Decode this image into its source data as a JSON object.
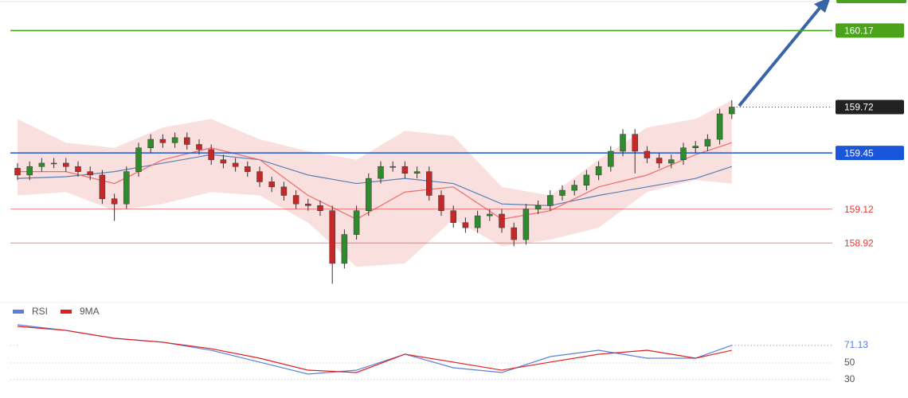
{
  "chart_data": [
    {
      "type": "candlestick",
      "ylim": [
        158.57,
        160.35
      ],
      "up_color": "#2e8b2e",
      "down_color": "#c62828",
      "open": [
        159.36,
        159.32,
        159.37,
        159.39,
        159.39,
        159.37,
        159.34,
        159.32,
        159.18,
        159.15,
        159.34,
        159.48,
        159.53,
        159.51,
        159.54,
        159.5,
        159.47,
        159.41,
        159.39,
        159.37,
        159.34,
        159.28,
        159.25,
        159.2,
        159.15,
        159.14,
        159.11,
        158.8,
        158.97,
        159.11,
        159.3,
        159.37,
        159.37,
        159.33,
        159.34,
        159.2,
        159.11,
        159.04,
        159.01,
        159.08,
        159.09,
        159.01,
        158.94,
        159.12,
        159.14,
        159.2,
        159.23,
        159.26,
        159.32,
        159.37,
        159.46,
        159.56,
        159.46,
        159.42,
        159.39,
        159.41,
        159.48,
        159.49,
        159.53,
        159.68
      ],
      "high": [
        159.39,
        159.4,
        159.42,
        159.42,
        159.42,
        159.4,
        159.37,
        159.35,
        159.21,
        159.37,
        159.51,
        159.56,
        159.56,
        159.57,
        159.57,
        159.53,
        159.5,
        159.44,
        159.42,
        159.4,
        159.37,
        159.31,
        159.28,
        159.23,
        159.18,
        159.17,
        159.14,
        159.0,
        159.14,
        159.33,
        159.4,
        159.4,
        159.4,
        159.37,
        159.37,
        159.23,
        159.14,
        159.07,
        159.11,
        159.12,
        159.12,
        159.04,
        159.15,
        159.17,
        159.23,
        159.26,
        159.29,
        159.35,
        159.4,
        159.49,
        159.59,
        159.59,
        159.49,
        159.45,
        159.44,
        159.51,
        159.52,
        159.56,
        159.71,
        159.76
      ],
      "low": [
        159.29,
        159.29,
        159.34,
        159.36,
        159.34,
        159.31,
        159.29,
        159.15,
        159.05,
        159.12,
        159.31,
        159.45,
        159.48,
        159.48,
        159.47,
        159.44,
        159.38,
        159.36,
        159.34,
        159.31,
        159.25,
        159.22,
        159.17,
        159.12,
        159.11,
        159.08,
        158.68,
        158.77,
        158.94,
        159.08,
        159.27,
        159.34,
        159.3,
        159.3,
        159.17,
        159.08,
        159.01,
        158.98,
        158.98,
        159.05,
        158.98,
        158.9,
        158.91,
        159.09,
        159.11,
        159.17,
        159.2,
        159.23,
        159.29,
        159.34,
        159.43,
        159.33,
        159.39,
        159.36,
        159.36,
        159.38,
        159.45,
        159.46,
        159.5,
        159.65
      ],
      "close": [
        159.32,
        159.37,
        159.39,
        159.39,
        159.37,
        159.34,
        159.32,
        159.18,
        159.15,
        159.34,
        159.48,
        159.53,
        159.51,
        159.54,
        159.5,
        159.47,
        159.41,
        159.39,
        159.37,
        159.34,
        159.28,
        159.25,
        159.2,
        159.15,
        159.14,
        159.11,
        158.8,
        158.97,
        159.11,
        159.3,
        159.37,
        159.37,
        159.33,
        159.34,
        159.2,
        159.11,
        159.04,
        159.01,
        159.08,
        159.09,
        159.01,
        158.94,
        159.12,
        159.14,
        159.2,
        159.23,
        159.26,
        159.32,
        159.37,
        159.46,
        159.56,
        159.46,
        159.42,
        159.39,
        159.41,
        159.48,
        159.49,
        159.53,
        159.68,
        159.72
      ],
      "band_x": [
        0,
        4,
        8,
        12,
        16,
        20,
        24,
        28,
        32,
        36,
        40,
        44,
        48,
        52,
        56,
        59
      ],
      "band_upper": [
        159.65,
        159.51,
        159.48,
        159.6,
        159.65,
        159.53,
        159.46,
        159.41,
        159.58,
        159.55,
        159.25,
        159.2,
        159.41,
        159.6,
        159.65,
        159.76
      ],
      "band_lower": [
        159.2,
        159.22,
        159.11,
        159.15,
        159.22,
        159.2,
        159.04,
        158.78,
        158.8,
        159.06,
        158.9,
        158.94,
        159.01,
        159.22,
        159.29,
        159.27
      ],
      "band_mid": [
        159.34,
        159.34,
        159.27,
        159.41,
        159.48,
        159.41,
        159.2,
        159.06,
        159.22,
        159.25,
        159.06,
        159.11,
        159.25,
        159.32,
        159.44,
        159.51
      ],
      "slow_ma": [
        159.3,
        159.31,
        159.34,
        159.39,
        159.44,
        159.41,
        159.32,
        159.27,
        159.3,
        159.27,
        159.15,
        159.14,
        159.2,
        159.25,
        159.3,
        159.37
      ],
      "band_color": "#f7c9c9",
      "mid_color": "#ef6b6b",
      "slow_color": "#5a7fb5",
      "levels": [
        {
          "value": 160.17,
          "color": "#4aa31a",
          "boxed": true
        },
        {
          "value": 159.45,
          "color": "#1a56db",
          "boxed": true
        },
        {
          "value": 159.12,
          "color": "#e53935",
          "boxed": false
        },
        {
          "value": 158.92,
          "color": "#e53935",
          "boxed": false
        }
      ],
      "current": {
        "value": 159.72,
        "color": "#222222"
      }
    },
    {
      "type": "line",
      "x": [
        0,
        4,
        8,
        12,
        16,
        20,
        24,
        28,
        32,
        36,
        40,
        44,
        48,
        52,
        56,
        59
      ],
      "ylim": [
        10,
        110
      ],
      "yticks": [
        50,
        30
      ],
      "series": [
        {
          "name": "RSI",
          "color": "#5b7fdb",
          "values": [
            95.7,
            89.0,
            79.5,
            74.8,
            65.2,
            51.0,
            36.7,
            41.4,
            60.5,
            44.3,
            38.6,
            57.6,
            65.2,
            55.7,
            55.7,
            71.13
          ]
        },
        {
          "name": "9MA",
          "color": "#e02020",
          "values": [
            93.8,
            89.0,
            79.5,
            74.8,
            67.1,
            55.7,
            41.4,
            38.6,
            60.5,
            51.0,
            41.4,
            51.0,
            60.5,
            65.2,
            55.7,
            65.2
          ]
        }
      ]
    }
  ]
}
